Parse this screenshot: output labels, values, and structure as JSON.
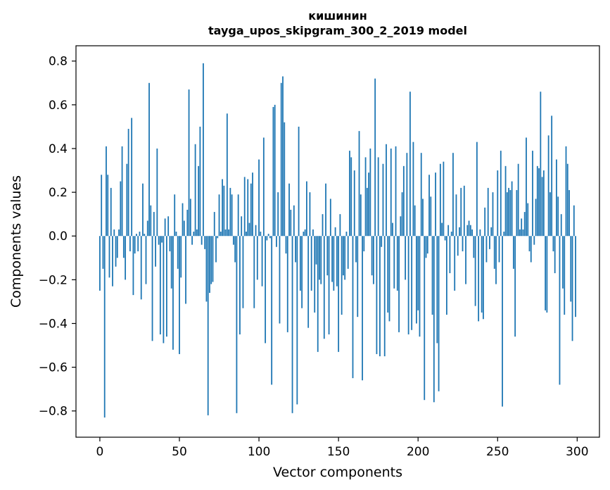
{
  "chart_data": {
    "type": "bar",
    "title": "кишинин",
    "subtitle": "tayga_upos_skipgram_300_2_2019 model",
    "xlabel": "Vector components",
    "ylabel": "Components values",
    "xlim": [
      -15,
      314
    ],
    "ylim": [
      -0.92,
      0.87
    ],
    "xticks": [
      0,
      50,
      100,
      150,
      200,
      250,
      300
    ],
    "xtick_labels": [
      "0",
      "50",
      "100",
      "150",
      "200",
      "250",
      "300"
    ],
    "yticks": [
      -0.8,
      -0.6,
      -0.4,
      -0.2,
      0.0,
      0.2,
      0.4,
      0.6,
      0.8
    ],
    "ytick_labels": [
      "−0.8",
      "−0.6",
      "−0.4",
      "−0.2",
      "0.0",
      "0.2",
      "0.4",
      "0.6",
      "0.8"
    ],
    "bar_color": "#1f77b4",
    "grid": false,
    "legend": "none",
    "x": [
      0,
      1,
      2,
      3,
      4,
      5,
      6,
      7,
      8,
      9,
      10,
      11,
      12,
      13,
      14,
      15,
      16,
      17,
      18,
      19,
      20,
      21,
      22,
      23,
      24,
      25,
      26,
      27,
      28,
      29,
      30,
      31,
      32,
      33,
      34,
      35,
      36,
      37,
      38,
      39,
      40,
      41,
      42,
      43,
      44,
      45,
      46,
      47,
      48,
      49,
      50,
      51,
      52,
      53,
      54,
      55,
      56,
      57,
      58,
      59,
      60,
      61,
      62,
      63,
      64,
      65,
      66,
      67,
      68,
      69,
      70,
      71,
      72,
      73,
      74,
      75,
      76,
      77,
      78,
      79,
      80,
      81,
      82,
      83,
      84,
      85,
      86,
      87,
      88,
      89,
      90,
      91,
      92,
      93,
      94,
      95,
      96,
      97,
      98,
      99,
      100,
      101,
      102,
      103,
      104,
      105,
      106,
      107,
      108,
      109,
      110,
      111,
      112,
      113,
      114,
      115,
      116,
      117,
      118,
      119,
      120,
      121,
      122,
      123,
      124,
      125,
      126,
      127,
      128,
      129,
      130,
      131,
      132,
      133,
      134,
      135,
      136,
      137,
      138,
      139,
      140,
      141,
      142,
      143,
      144,
      145,
      146,
      147,
      148,
      149,
      150,
      151,
      152,
      153,
      154,
      155,
      156,
      157,
      158,
      159,
      160,
      161,
      162,
      163,
      164,
      165,
      166,
      167,
      168,
      169,
      170,
      171,
      172,
      173,
      174,
      175,
      176,
      177,
      178,
      179,
      180,
      181,
      182,
      183,
      184,
      185,
      186,
      187,
      188,
      189,
      190,
      191,
      192,
      193,
      194,
      195,
      196,
      197,
      198,
      199,
      200,
      201,
      202,
      203,
      204,
      205,
      206,
      207,
      208,
      209,
      210,
      211,
      212,
      213,
      214,
      215,
      216,
      217,
      218,
      219,
      220,
      221,
      222,
      223,
      224,
      225,
      226,
      227,
      228,
      229,
      230,
      231,
      232,
      233,
      234,
      235,
      236,
      237,
      238,
      239,
      240,
      241,
      242,
      243,
      244,
      245,
      246,
      247,
      248,
      249,
      250,
      251,
      252,
      253,
      254,
      255,
      256,
      257,
      258,
      259,
      260,
      261,
      262,
      263,
      264,
      265,
      266,
      267,
      268,
      269,
      270,
      271,
      272,
      273,
      274,
      275,
      276,
      277,
      278,
      279,
      280,
      281,
      282,
      283,
      284,
      285,
      286,
      287,
      288,
      289,
      290,
      291,
      292,
      293,
      294,
      295,
      296,
      297,
      298,
      299
    ],
    "values": [
      -0.25,
      0.28,
      -0.15,
      -0.83,
      0.41,
      0.28,
      -0.19,
      0.22,
      -0.23,
      0.03,
      -0.14,
      -0.1,
      0.03,
      0.25,
      0.41,
      -0.1,
      -0.2,
      0.33,
      0.49,
      -0.07,
      0.54,
      -0.27,
      -0.08,
      0.01,
      -0.07,
      0.02,
      -0.29,
      0.24,
      0.01,
      -0.22,
      0.07,
      0.7,
      0.14,
      -0.48,
      0.11,
      -0.14,
      0.4,
      -0.04,
      -0.45,
      -0.03,
      -0.49,
      0.08,
      -0.46,
      0.09,
      -0.07,
      -0.24,
      -0.52,
      0.19,
      0.02,
      -0.15,
      -0.54,
      -0.19,
      0.15,
      0.07,
      -0.31,
      0.12,
      0.67,
      0.17,
      -0.04,
      0.02,
      0.42,
      0.03,
      0.32,
      0.5,
      -0.04,
      0.79,
      -0.06,
      -0.3,
      -0.82,
      -0.26,
      -0.22,
      -0.21,
      0.11,
      -0.12,
      -0.01,
      0.19,
      0.02,
      0.26,
      0.23,
      0.03,
      0.56,
      0.03,
      0.22,
      0.19,
      -0.04,
      -0.12,
      -0.81,
      0.19,
      -0.45,
      0.09,
      -0.33,
      0.27,
      0.02,
      0.26,
      0.06,
      0.24,
      0.29,
      -0.33,
      0.05,
      -0.2,
      0.35,
      0.02,
      -0.23,
      0.45,
      -0.49,
      -0.02,
      0.01,
      -0.01,
      -0.68,
      0.59,
      0.6,
      -0.05,
      0.2,
      -0.4,
      0.7,
      0.73,
      0.52,
      -0.08,
      -0.44,
      0.24,
      0.12,
      -0.81,
      0.14,
      -0.12,
      -0.77,
      0.5,
      -0.25,
      -0.33,
      0.02,
      0.03,
      0.25,
      -0.42,
      0.2,
      -0.25,
      0.03,
      -0.35,
      -0.13,
      -0.53,
      -0.2,
      -0.22,
      0.1,
      -0.47,
      0.24,
      -0.18,
      -0.45,
      0.17,
      -0.21,
      -0.25,
      0.04,
      -0.23,
      -0.53,
      0.1,
      -0.36,
      -0.18,
      -0.2,
      0.02,
      -0.15,
      0.39,
      0.36,
      -0.65,
      0.3,
      -0.12,
      -0.37,
      0.48,
      0.19,
      -0.66,
      -0.07,
      0.36,
      0.22,
      0.29,
      0.4,
      -0.18,
      -0.22,
      0.72,
      -0.54,
      0.36,
      -0.55,
      -0.05,
      0.33,
      -0.55,
      0.42,
      -0.35,
      -0.39,
      0.4,
      0.06,
      -0.24,
      0.41,
      -0.25,
      -0.44,
      0.09,
      0.2,
      0.32,
      -0.2,
      0.38,
      -0.45,
      0.66,
      -0.43,
      0.43,
      0.14,
      -0.4,
      -0.34,
      -0.46,
      0.38,
      0.17,
      -0.75,
      -0.1,
      -0.08,
      0.28,
      0.18,
      -0.36,
      -0.76,
      0.29,
      -0.49,
      -0.71,
      0.33,
      0.06,
      0.34,
      -0.02,
      -0.36,
      0.05,
      -0.17,
      0.02,
      0.38,
      -0.25,
      0.19,
      -0.09,
      0.04,
      0.22,
      -0.07,
      0.23,
      -0.22,
      0.05,
      0.07,
      0.05,
      0.03,
      -0.1,
      -0.32,
      0.43,
      -0.39,
      0.03,
      -0.35,
      -0.38,
      0.13,
      -0.12,
      0.22,
      -0.06,
      0.04,
      0.2,
      -0.15,
      -0.22,
      0.3,
      -0.12,
      0.39,
      -0.78,
      0.02,
      0.32,
      0.2,
      0.22,
      0.21,
      0.25,
      -0.15,
      -0.46,
      0.21,
      0.33,
      0.03,
      0.08,
      0.03,
      0.11,
      0.45,
      0.15,
      -0.07,
      -0.12,
      0.39,
      -0.04,
      0.17,
      0.32,
      0.31,
      0.66,
      0.27,
      0.3,
      -0.34,
      -0.35,
      0.46,
      0.2,
      0.55,
      -0.07,
      -0.17,
      0.35,
      0.18,
      -0.68,
      0.1,
      -0.24,
      -0.36,
      0.41,
      0.33,
      0.21,
      -0.3,
      -0.48,
      0.14,
      -0.37
    ]
  }
}
